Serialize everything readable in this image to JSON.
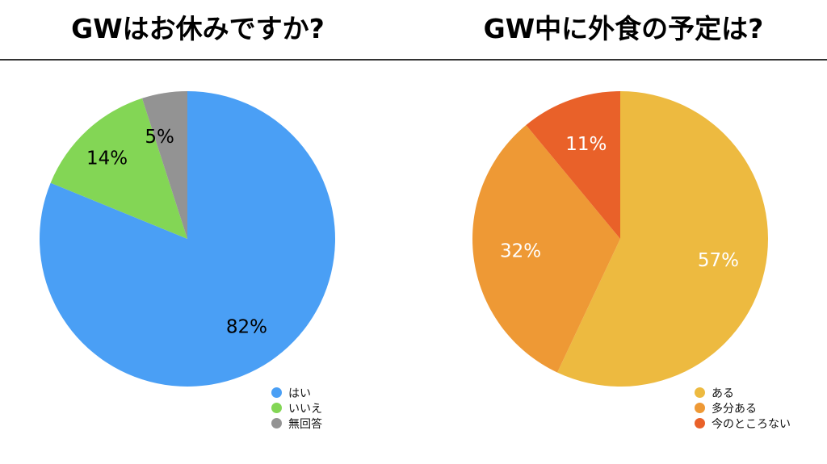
{
  "chart_data": [
    {
      "type": "pie",
      "title": "GWはお休みですか?",
      "slices": [
        {
          "label": "はい",
          "value": 82,
          "display": "82%",
          "color": "#4A9FF5"
        },
        {
          "label": "いいえ",
          "value": 14,
          "display": "14%",
          "color": "#83D655"
        },
        {
          "label": "無回答",
          "value": 5,
          "display": "5%",
          "color": "#939393"
        }
      ],
      "legend_position": "bottom-right",
      "label_color": "#000000"
    },
    {
      "type": "pie",
      "title": "GW中に外食の予定は?",
      "slices": [
        {
          "label": "ある",
          "value": 57,
          "display": "57%",
          "color": "#EDBA40"
        },
        {
          "label": "多分ある",
          "value": 32,
          "display": "32%",
          "color": "#EE9935"
        },
        {
          "label": "今のところない",
          "value": 11,
          "display": "11%",
          "color": "#E96129"
        }
      ],
      "legend_position": "bottom-right",
      "label_color": "#ffffff"
    }
  ]
}
